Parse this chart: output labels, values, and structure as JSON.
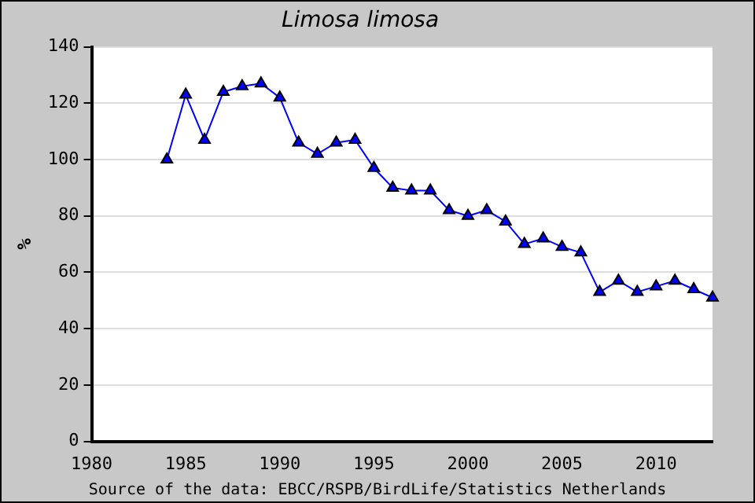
{
  "chart_data": {
    "type": "line",
    "title": "Limosa limosa",
    "ylabel": "%",
    "annotations": [
      "Source of the data: EBCC/RSPB/BirdLife/Statistics Netherlands"
    ],
    "x": [
      1984,
      1985,
      1986,
      1987,
      1988,
      1989,
      1990,
      1991,
      1992,
      1993,
      1994,
      1995,
      1996,
      1997,
      1998,
      1999,
      2000,
      2001,
      2002,
      2003,
      2004,
      2005,
      2006,
      2007,
      2008,
      2009,
      2010,
      2011,
      2012,
      2013
    ],
    "series": [
      {
        "color": "#0000ff",
        "values": [
          100,
          123,
          107,
          124,
          126,
          127,
          122,
          106,
          102,
          106,
          107,
          97,
          90,
          89,
          89,
          82,
          80,
          82,
          78,
          70,
          72,
          69,
          67,
          53,
          57,
          53,
          55,
          57,
          54,
          51
        ]
      }
    ],
    "xlim": [
      1980,
      2013
    ],
    "xticks": [
      1980,
      1985,
      1990,
      1995,
      2000,
      2005,
      2010
    ],
    "ylim": [
      0,
      140
    ],
    "yticks": [
      0,
      20,
      40,
      60,
      80,
      100,
      120,
      140
    ],
    "grid": "y",
    "legend": false,
    "marker": "triangle",
    "line_style": "solid"
  }
}
